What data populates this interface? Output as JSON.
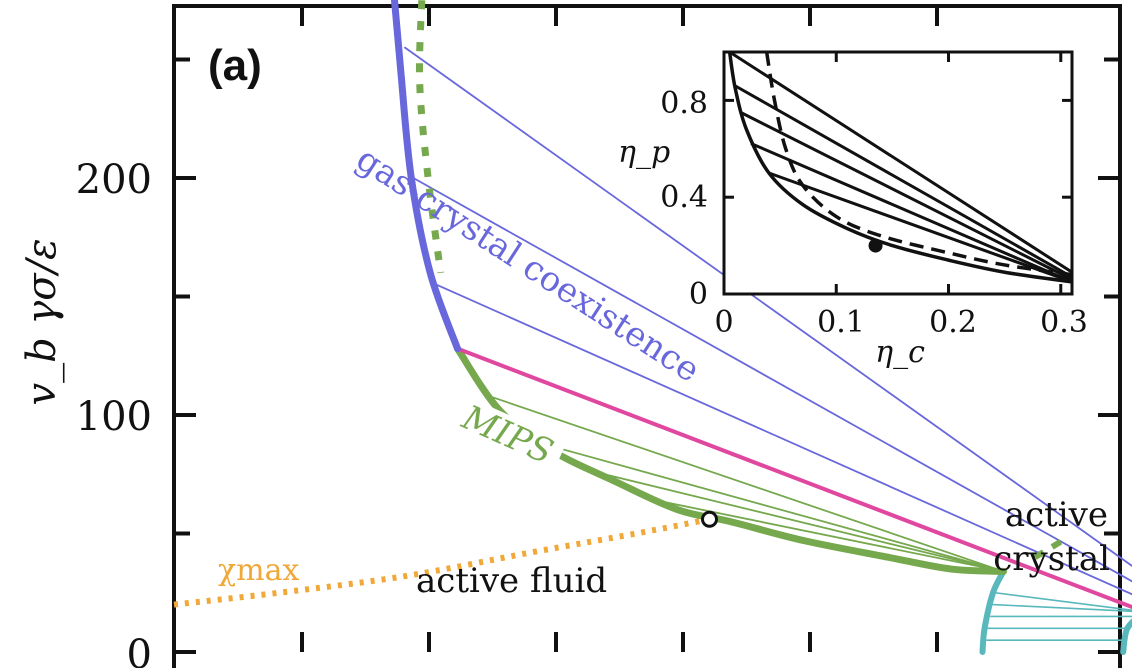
{
  "chart_data": {
    "type": "line",
    "panel_label": "(a)",
    "ylabel": "v_b γσ/ε",
    "yticks": [
      0,
      100,
      200
    ],
    "ylim": [
      0,
      275
    ],
    "x_tick_count": 6,
    "annotations": {
      "gas_crystal": "gas-crystal coexistence",
      "mips": "MIPS",
      "chi_max": "χmax",
      "active_fluid": "active fluid",
      "active_crystal_1": "active",
      "active_crystal_2": "crystal"
    },
    "colors": {
      "gas_crystal": "#6868dc",
      "mips": "#76a84e",
      "triple": "#e048a0",
      "chi": "#f0a838",
      "crystal": "#58b8bc"
    },
    "main_curves": {
      "gas_boundary": [
        [
          0.105,
          275
        ],
        [
          0.108,
          245
        ],
        [
          0.113,
          200
        ],
        [
          0.122,
          160
        ],
        [
          0.135,
          128
        ]
      ],
      "mips_binodal_dotted": [
        [
          0.118,
          275
        ],
        [
          0.117,
          240
        ],
        [
          0.121,
          200
        ],
        [
          0.127,
          160
        ]
      ],
      "mips_left": [
        [
          0.135,
          128
        ],
        [
          0.155,
          102
        ],
        [
          0.18,
          85
        ],
        [
          0.21,
          72
        ],
        [
          0.24,
          60
        ],
        [
          0.265,
          55
        ],
        [
          0.3,
          47
        ],
        [
          0.34,
          40
        ],
        [
          0.37,
          35
        ],
        [
          0.395,
          34
        ]
      ],
      "triple_line": [
        [
          0.135,
          128
        ],
        [
          0.462,
          17
        ]
      ],
      "crystal_right": [
        [
          0.462,
          17
        ],
        [
          0.493,
          12
        ]
      ],
      "crystal_left_boundary": [
        [
          0.385,
          0
        ],
        [
          0.386,
          10
        ],
        [
          0.39,
          25
        ],
        [
          0.395,
          34
        ]
      ],
      "crystal_right_boundary": [
        [
          0.452,
          0
        ],
        [
          0.454,
          10
        ],
        [
          0.462,
          17
        ]
      ],
      "chi_max": [
        [
          0.0,
          20
        ],
        [
          0.05,
          25
        ],
        [
          0.11,
          32
        ],
        [
          0.17,
          42
        ],
        [
          0.22,
          50
        ],
        [
          0.255,
          56
        ]
      ],
      "critical_point": [
        0.255,
        56
      ],
      "spinodal_right_dashed": [
        [
          0.41,
          40
        ],
        [
          0.425,
          48
        ]
      ],
      "gas_tie_lines": [
        [
          [
            0.11,
            255
          ],
          [
            0.49,
            15
          ]
        ],
        [
          [
            0.114,
            200
          ],
          [
            0.488,
            14
          ]
        ],
        [
          [
            0.125,
            155
          ],
          [
            0.485,
            13
          ]
        ]
      ],
      "mips_tie_lines": [
        [
          [
            0.15,
            108
          ],
          [
            0.395,
            34
          ]
        ],
        [
          [
            0.175,
            88
          ],
          [
            0.395,
            34
          ]
        ],
        [
          [
            0.205,
            75
          ],
          [
            0.395,
            34
          ]
        ],
        [
          [
            0.235,
            63
          ],
          [
            0.395,
            34
          ]
        ]
      ],
      "crystal_tie_lines": [
        [
          [
            0.387,
            5
          ],
          [
            0.452,
            5
          ]
        ],
        [
          [
            0.387,
            10
          ],
          [
            0.453,
            10
          ]
        ],
        [
          [
            0.389,
            15
          ],
          [
            0.456,
            15
          ]
        ],
        [
          [
            0.39,
            20
          ],
          [
            0.46,
            17
          ]
        ],
        [
          [
            0.391,
            25
          ],
          [
            0.462,
            17
          ]
        ]
      ]
    },
    "inset": {
      "xlabel": "η_c",
      "ylabel": "η_p",
      "xlim": [
        0,
        0.31
      ],
      "ylim": [
        0,
        1.0
      ],
      "xticks": [
        "0",
        "0.1",
        "0.2",
        "0.3"
      ],
      "yticks": [
        "0",
        "0.4",
        "0.8"
      ],
      "solid_boundary": [
        [
          0.005,
          1.0
        ],
        [
          0.01,
          0.85
        ],
        [
          0.02,
          0.68
        ],
        [
          0.04,
          0.5
        ],
        [
          0.07,
          0.37
        ],
        [
          0.11,
          0.27
        ],
        [
          0.15,
          0.2
        ],
        [
          0.2,
          0.14
        ],
        [
          0.25,
          0.09
        ],
        [
          0.31,
          0.05
        ]
      ],
      "dashed_curve": [
        [
          0.038,
          1.0
        ],
        [
          0.045,
          0.8
        ],
        [
          0.055,
          0.6
        ],
        [
          0.07,
          0.45
        ],
        [
          0.1,
          0.32
        ],
        [
          0.14,
          0.24
        ],
        [
          0.2,
          0.17
        ],
        [
          0.25,
          0.12
        ],
        [
          0.31,
          0.08
        ]
      ],
      "tie_lines": [
        [
          [
            0.005,
            1.0
          ],
          [
            0.31,
            0.09
          ]
        ],
        [
          [
            0.01,
            0.86
          ],
          [
            0.31,
            0.07
          ]
        ],
        [
          [
            0.015,
            0.75
          ],
          [
            0.31,
            0.06
          ]
        ],
        [
          [
            0.025,
            0.62
          ],
          [
            0.31,
            0.05
          ]
        ],
        [
          [
            0.04,
            0.5
          ],
          [
            0.31,
            0.05
          ]
        ]
      ],
      "critical_point": [
        0.135,
        0.2
      ]
    }
  }
}
